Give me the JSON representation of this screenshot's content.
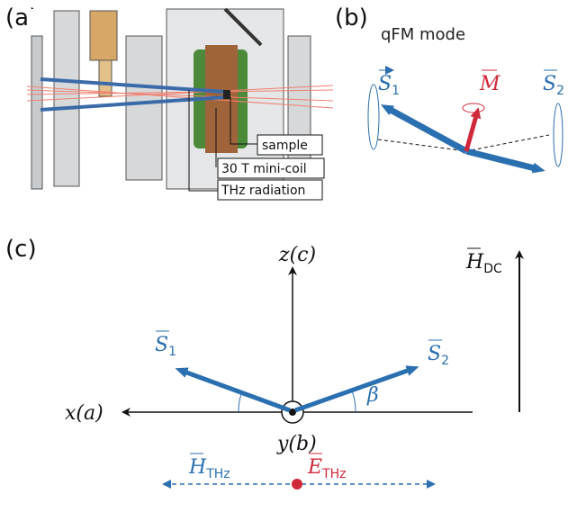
{
  "panels": {
    "a": {
      "label": "(a)",
      "labels": [
        "sample",
        "30 T mini-coil",
        "THz radiation"
      ]
    },
    "b": {
      "label": "(b)",
      "title": "qFM mode",
      "vectors": [
        {
          "symbol": "S",
          "subscript": "1"
        },
        {
          "symbol": "M"
        },
        {
          "symbol": "S",
          "subscript": "2"
        }
      ]
    },
    "c": {
      "label": "(c)",
      "axes": {
        "z": "z(c)",
        "x": "x(a)",
        "y": "y(b)"
      },
      "angle": "β",
      "vectors": {
        "s1": {
          "symbol": "S",
          "subscript": "1"
        },
        "s2": {
          "symbol": "S",
          "subscript": "2"
        },
        "h_dc": {
          "symbol": "H",
          "subscript": "DC"
        },
        "h_thz": {
          "symbol": "H",
          "subscript": "THz"
        },
        "e_thz": {
          "symbol": "E",
          "subscript": "THz"
        }
      }
    }
  }
}
